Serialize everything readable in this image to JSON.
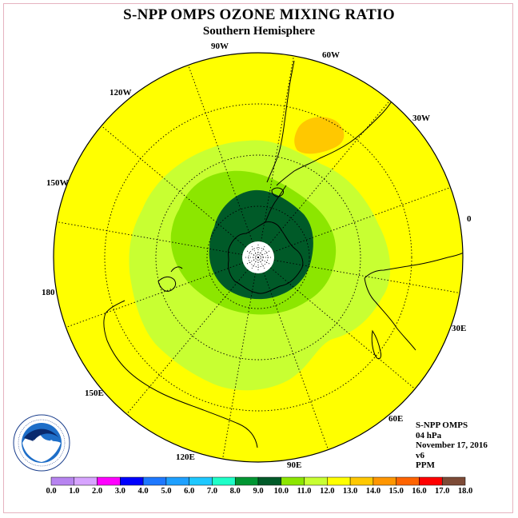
{
  "title": "S-NPP OMPS OZONE MIXING RATIO",
  "subtitle": "Southern Hemisphere",
  "longitude_labels": {
    "lon_90w": "90W",
    "lon_60w": "60W",
    "lon_30w": "30W",
    "lon_0": "0",
    "lon_30e": "30E",
    "lon_60e": "60E",
    "lon_90e": "90E",
    "lon_120e": "120E",
    "lon_150e": "150E",
    "lon_180": "180",
    "lon_150w": "150W",
    "lon_120w": "120W"
  },
  "info": {
    "instrument": "S-NPP OMPS",
    "level": "04 hPa",
    "date": "November 17, 2016",
    "version": "v6",
    "units": "PPM"
  },
  "logo": {
    "text": "NOAA",
    "ring_text": "NATIONAL OCEANIC AND ATMOSPHERIC ADMINISTRATION · U.S. DEPARTMENT OF COMMERCE"
  },
  "colorbar": {
    "ticks": [
      "0.0",
      "1.0",
      "2.0",
      "3.0",
      "4.0",
      "5.0",
      "6.0",
      "7.0",
      "8.0",
      "9.0",
      "10.0",
      "11.0",
      "12.0",
      "13.0",
      "14.0",
      "15.0",
      "16.0",
      "17.0",
      "18.0"
    ],
    "colors": [
      "#b784f0",
      "#d7a4ff",
      "#ff00ff",
      "#0000ff",
      "#1e78ff",
      "#1ea0ff",
      "#1ec8ff",
      "#1effc8",
      "#009632",
      "#005a28",
      "#8ce600",
      "#c8ff32",
      "#ffff00",
      "#ffc800",
      "#ff9600",
      "#ff6400",
      "#ff0000",
      "#7d4b37"
    ]
  },
  "map": {
    "ocean_fill": "#ffff00",
    "contour_levels": {
      "outer_band": "#c8ff32",
      "middle_band": "#8ce600",
      "inner_core": "#005a28",
      "high_patch": "#ffc800"
    }
  }
}
